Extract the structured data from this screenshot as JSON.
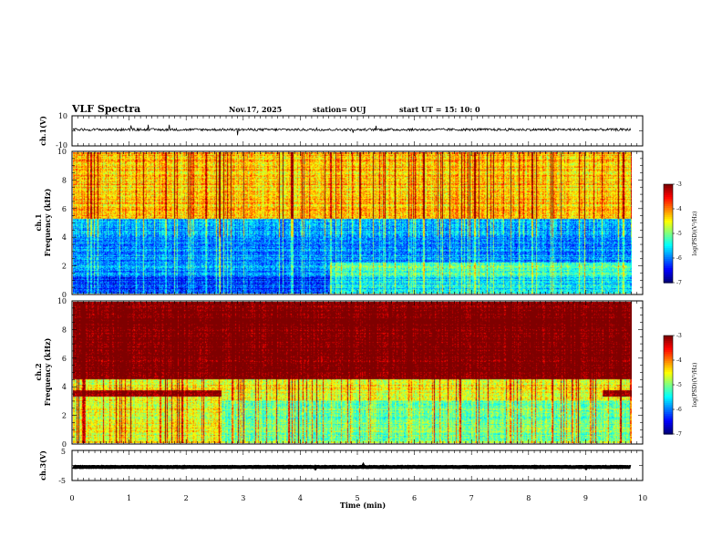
{
  "header": {
    "title": "VLF Spectra",
    "date": "Nov.17, 2025",
    "station": "station= OUJ",
    "start": "start  UT =   15: 10: 0"
  },
  "chart_data": [
    {
      "type": "line",
      "name": "waveform-ch1",
      "ylabel": "ch.1(V)",
      "ylim": [
        -10,
        10
      ],
      "y_ticks": [
        "10",
        "-10"
      ],
      "x_range_min": [
        0,
        10
      ],
      "baseline_level": 0.8,
      "trace_color": "#000000"
    },
    {
      "type": "heatmap",
      "name": "spectrogram-ch1",
      "ylabel_top": "ch.1",
      "ylabel": "Frequency (kHz)",
      "ylim": [
        0,
        10
      ],
      "y_ticks": [
        "0",
        "2",
        "4",
        "6",
        "8",
        "10"
      ],
      "x_range_min": [
        0,
        9.8
      ],
      "colorbar": {
        "label": "log(PSD)(V²/Hz)",
        "ticks": [
          "-3",
          "-4",
          "-5",
          "-6",
          "-7"
        ],
        "range": [
          -7,
          -3
        ]
      },
      "base_level": -5.5,
      "noise_floor_khz": 5.3
    },
    {
      "type": "heatmap",
      "name": "spectrogram-ch2",
      "ylabel_top": "ch.2",
      "ylabel": "Frequency (kHz)",
      "ylim": [
        0,
        10
      ],
      "y_ticks": [
        "0",
        "2",
        "4",
        "6",
        "8",
        "10"
      ],
      "x_range_min": [
        0,
        9.8
      ],
      "colorbar": {
        "label": "log(PSD)(V²/Hz)",
        "ticks": [
          "-3",
          "-4",
          "-5",
          "-6",
          "-7"
        ],
        "range": [
          -7,
          -3
        ]
      },
      "base_level": -4.0,
      "band_khz": 3.5
    },
    {
      "type": "line",
      "name": "waveform-ch3",
      "ylabel": "ch.3(V)",
      "ylim": [
        -5,
        5
      ],
      "y_ticks": [
        "5",
        "-5"
      ],
      "x_range_min": [
        0,
        10
      ],
      "baseline_level": -0.5,
      "trace_color": "#000000"
    }
  ],
  "xaxis": {
    "label": "Time (min)",
    "ticks": [
      "0",
      "1",
      "2",
      "3",
      "4",
      "5",
      "6",
      "7",
      "8",
      "9",
      "10"
    ],
    "range": [
      0,
      10
    ]
  }
}
